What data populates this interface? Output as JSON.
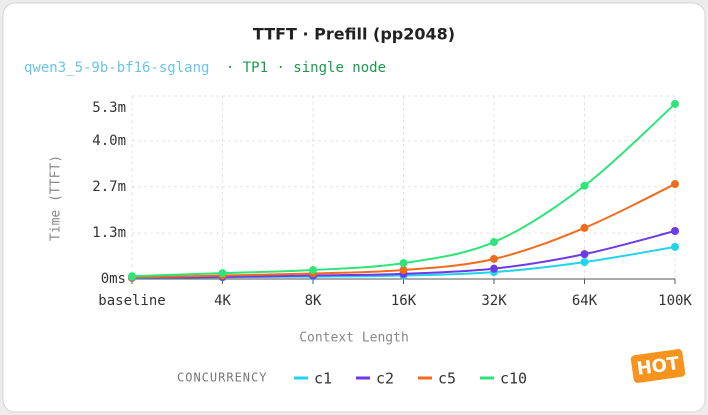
{
  "chart_data": {
    "type": "line",
    "title": "TTFT · Prefill (pp2048)",
    "subtitle_model": "qwen3_5-9b-bf16-sglang",
    "subtitle_rest": "· TP1 · single node",
    "x_label": "Context Length",
    "y_label": "Time (TTFT)",
    "legend_title": "CONCURRENCY",
    "badge": "HOT",
    "categories": [
      "baseline",
      "4K",
      "8K",
      "16K",
      "32K",
      "64K",
      "100K"
    ],
    "ylim": [
      0,
      5.3
    ],
    "yticks": [
      {
        "value": 0,
        "label": "0ms"
      },
      {
        "value": 1.33,
        "label": "1.3m"
      },
      {
        "value": 2.67,
        "label": "2.7m"
      },
      {
        "value": 4.0,
        "label": "4.0m"
      },
      {
        "value": 5.3,
        "label": "5.3m"
      }
    ],
    "grid": true,
    "series": [
      {
        "name": "c1",
        "color": "#22d3ee",
        "values": [
          0.03,
          0.05,
          0.07,
          0.1,
          0.2,
          0.49,
          0.93
        ]
      },
      {
        "name": "c2",
        "color": "#6d3ae6",
        "values": [
          0.04,
          0.06,
          0.1,
          0.15,
          0.3,
          0.72,
          1.39
        ]
      },
      {
        "name": "c5",
        "color": "#f26b1d",
        "values": [
          0.05,
          0.1,
          0.16,
          0.26,
          0.58,
          1.48,
          2.75
        ]
      },
      {
        "name": "c10",
        "color": "#2ee57a",
        "values": [
          0.08,
          0.17,
          0.26,
          0.46,
          1.07,
          2.7,
          5.07
        ]
      }
    ]
  }
}
